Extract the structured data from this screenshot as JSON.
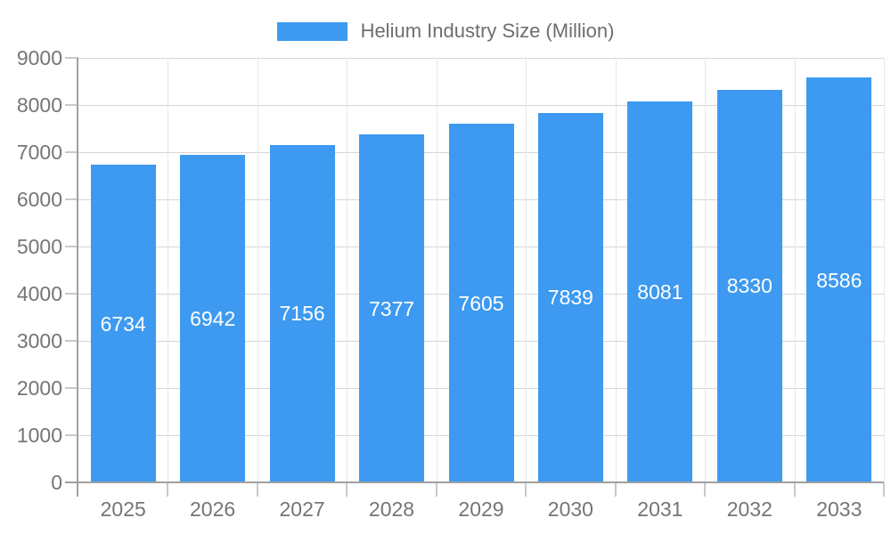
{
  "chart_data": {
    "type": "bar",
    "title": "",
    "legend": {
      "label": "Helium Industry Size (Million)",
      "position": "top"
    },
    "categories": [
      "2025",
      "2026",
      "2027",
      "2028",
      "2029",
      "2030",
      "2031",
      "2032",
      "2033"
    ],
    "values": [
      6734,
      6942,
      7156,
      7377,
      7605,
      7839,
      8081,
      8330,
      8586
    ],
    "xlabel": "",
    "ylabel": "",
    "ylim": [
      0,
      9000
    ],
    "ytick_step": 1000,
    "ytick_labels": [
      "0",
      "1000",
      "2000",
      "3000",
      "4000",
      "5000",
      "6000",
      "7000",
      "8000",
      "9000"
    ],
    "grid": true,
    "bar_value_labels_visible": true,
    "colors": {
      "bar": "#3d9af0",
      "bar_value_text": "#ffffff",
      "axis_text": "#757575",
      "legend_text": "#6e6e6e",
      "axis_line": "#a0a0a0",
      "gridline": "#d6d6d6"
    }
  }
}
